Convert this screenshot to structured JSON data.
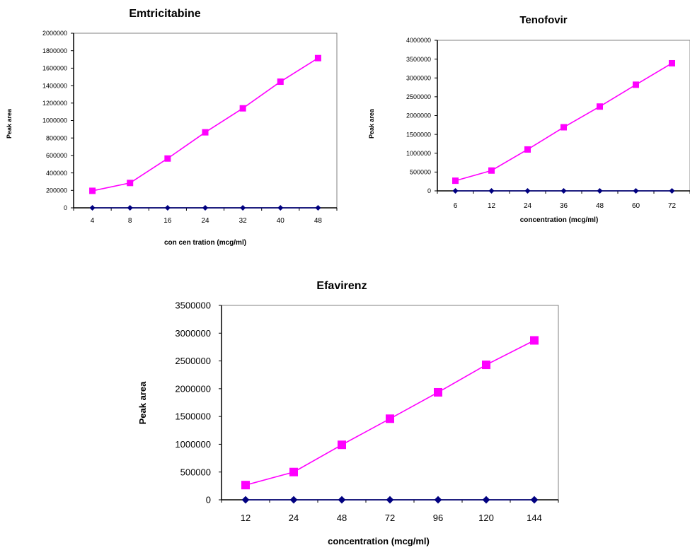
{
  "chart_data": [
    {
      "type": "line",
      "title": "Emtricitabine",
      "xlabel": "con cen tration (mcg/ml)",
      "ylabel": "Peak area",
      "categories": [
        "4",
        "8",
        "16",
        "24",
        "32",
        "40",
        "48"
      ],
      "ylim": [
        0,
        2000000
      ],
      "yticks": [
        "0",
        "200000",
        "400000",
        "600000",
        "800000",
        "1000000",
        "1200000",
        "1400000",
        "1600000",
        "1800000",
        "2000000"
      ],
      "grid": false,
      "series": [
        {
          "color": "#ff00ff",
          "marker": "square",
          "values": [
            195000,
            285000,
            565000,
            865000,
            1140000,
            1445000,
            1715000
          ]
        },
        {
          "color": "#000080",
          "marker": "diamond",
          "values": [
            0,
            0,
            0,
            0,
            0,
            0,
            0
          ]
        }
      ]
    },
    {
      "type": "line",
      "title": "Tenofovir",
      "xlabel": "concentration (mcg/ml)",
      "ylabel": "Peak area",
      "categories": [
        "6",
        "12",
        "24",
        "36",
        "48",
        "60",
        "72"
      ],
      "ylim": [
        0,
        4000000
      ],
      "yticks": [
        "0",
        "500000",
        "1000000",
        "1500000",
        "2000000",
        "2500000",
        "3000000",
        "3500000",
        "4000000"
      ],
      "grid": false,
      "series": [
        {
          "color": "#ff00ff",
          "marker": "square",
          "values": [
            270000,
            540000,
            1100000,
            1690000,
            2240000,
            2820000,
            3390000
          ]
        },
        {
          "color": "#000080",
          "marker": "diamond",
          "values": [
            0,
            0,
            0,
            0,
            0,
            0,
            0
          ]
        }
      ]
    },
    {
      "type": "line",
      "title": "Efavirenz",
      "xlabel": "concentration (mcg/ml)",
      "ylabel": "Peak area",
      "categories": [
        "12",
        "24",
        "48",
        "72",
        "96",
        "120",
        "144"
      ],
      "ylim": [
        0,
        3500000
      ],
      "yticks": [
        "0",
        "500000",
        "1000000",
        "1500000",
        "2000000",
        "2500000",
        "3000000",
        "3500000"
      ],
      "grid": false,
      "series": [
        {
          "color": "#ff00ff",
          "marker": "square",
          "values": [
            265000,
            500000,
            990000,
            1460000,
            1935000,
            2430000,
            2870000
          ]
        },
        {
          "color": "#000080",
          "marker": "diamond",
          "values": [
            0,
            0,
            0,
            0,
            0,
            0,
            0
          ]
        }
      ]
    }
  ]
}
